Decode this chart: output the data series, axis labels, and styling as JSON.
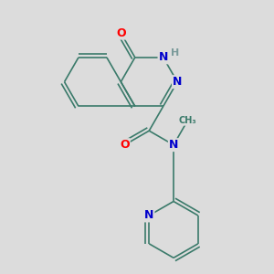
{
  "bg_color": "#dcdcdc",
  "bond_color": "#3a7a6a",
  "bond_width": 1.2,
  "atom_colors": {
    "O": "#ff0000",
    "N": "#0000cc",
    "H": "#7a9a9a",
    "C": "#3a7a6a"
  },
  "font_size": 9,
  "figsize": [
    3.0,
    3.0
  ],
  "dpi": 100
}
